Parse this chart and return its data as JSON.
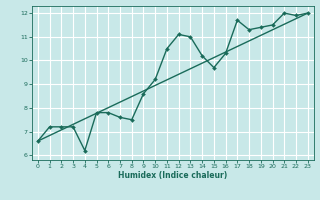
{
  "title": "",
  "xlabel": "Humidex (Indice chaleur)",
  "ylabel": "",
  "bg_color": "#c8e8e8",
  "grid_color": "#ffffff",
  "line_color": "#1a6b5a",
  "xlim": [
    -0.5,
    23.5
  ],
  "ylim": [
    5.8,
    12.3
  ],
  "xticks": [
    0,
    1,
    2,
    3,
    4,
    5,
    6,
    7,
    8,
    9,
    10,
    11,
    12,
    13,
    14,
    15,
    16,
    17,
    18,
    19,
    20,
    21,
    22,
    23
  ],
  "yticks": [
    6,
    7,
    8,
    9,
    10,
    11,
    12
  ],
  "series1_x": [
    0,
    1,
    2,
    3,
    4,
    5,
    6,
    7,
    8,
    9,
    10,
    11,
    12,
    13,
    14,
    15,
    16,
    17,
    18,
    19,
    20,
    21,
    22,
    23
  ],
  "series1_y": [
    6.6,
    7.2,
    7.2,
    7.2,
    6.2,
    7.8,
    7.8,
    7.6,
    7.5,
    8.6,
    9.2,
    10.5,
    11.1,
    11.0,
    10.2,
    9.7,
    10.3,
    11.7,
    11.3,
    11.4,
    11.5,
    12.0,
    11.9,
    12.0
  ],
  "series2_x": [
    0,
    23
  ],
  "series2_y": [
    6.6,
    12.0
  ],
  "marker_size": 2.0,
  "line_width": 1.0
}
